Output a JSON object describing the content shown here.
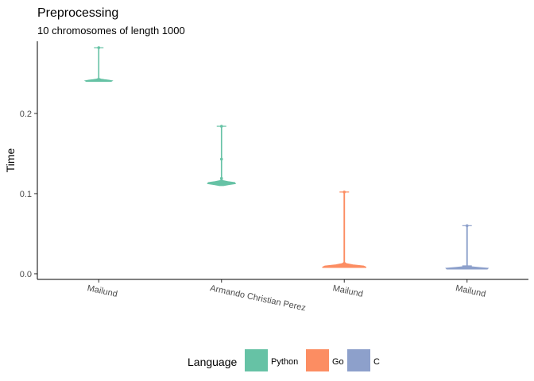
{
  "chart_data": {
    "type": "violin",
    "title": "Preprocessing",
    "subtitle": "10 chromosomes of length 1000",
    "xlabel": "",
    "ylabel": "Time",
    "ylim": [
      -0.007,
      0.29
    ],
    "yticks": [
      0.0,
      0.1,
      0.2
    ],
    "ytick_labels": [
      "0.0",
      "0.1",
      "0.2"
    ],
    "categories": [
      "Mailund",
      "Armando Christian Perez",
      "Mailund",
      "Mailund"
    ],
    "legend": {
      "title": "Language",
      "position": "bottom",
      "entries": [
        {
          "label": "Python",
          "color": "#66c2a5"
        },
        {
          "label": "Go",
          "color": "#fc8d62"
        },
        {
          "label": "C",
          "color": "#8da0cb"
        }
      ]
    },
    "violins": [
      {
        "category_index": 0,
        "language": "Python",
        "color": "#66c2a5",
        "min": 0.24,
        "max": 0.282,
        "mode": 0.2405,
        "width": 0.22,
        "outliers": [
          0.282
        ]
      },
      {
        "category_index": 1,
        "language": "Python",
        "color": "#66c2a5",
        "min": 0.11,
        "max": 0.184,
        "mode": 0.113,
        "width": 0.24,
        "outliers": [
          0.184,
          0.143,
          0.119
        ]
      },
      {
        "category_index": 2,
        "language": "Go",
        "color": "#fc8d62",
        "min": 0.008,
        "max": 0.102,
        "mode": 0.0085,
        "width": 0.37,
        "outliers": [
          0.102
        ]
      },
      {
        "category_index": 3,
        "language": "C",
        "color": "#8da0cb",
        "min": 0.006,
        "max": 0.06,
        "mode": 0.0065,
        "width": 0.36,
        "outliers": [
          0.06
        ]
      }
    ]
  }
}
